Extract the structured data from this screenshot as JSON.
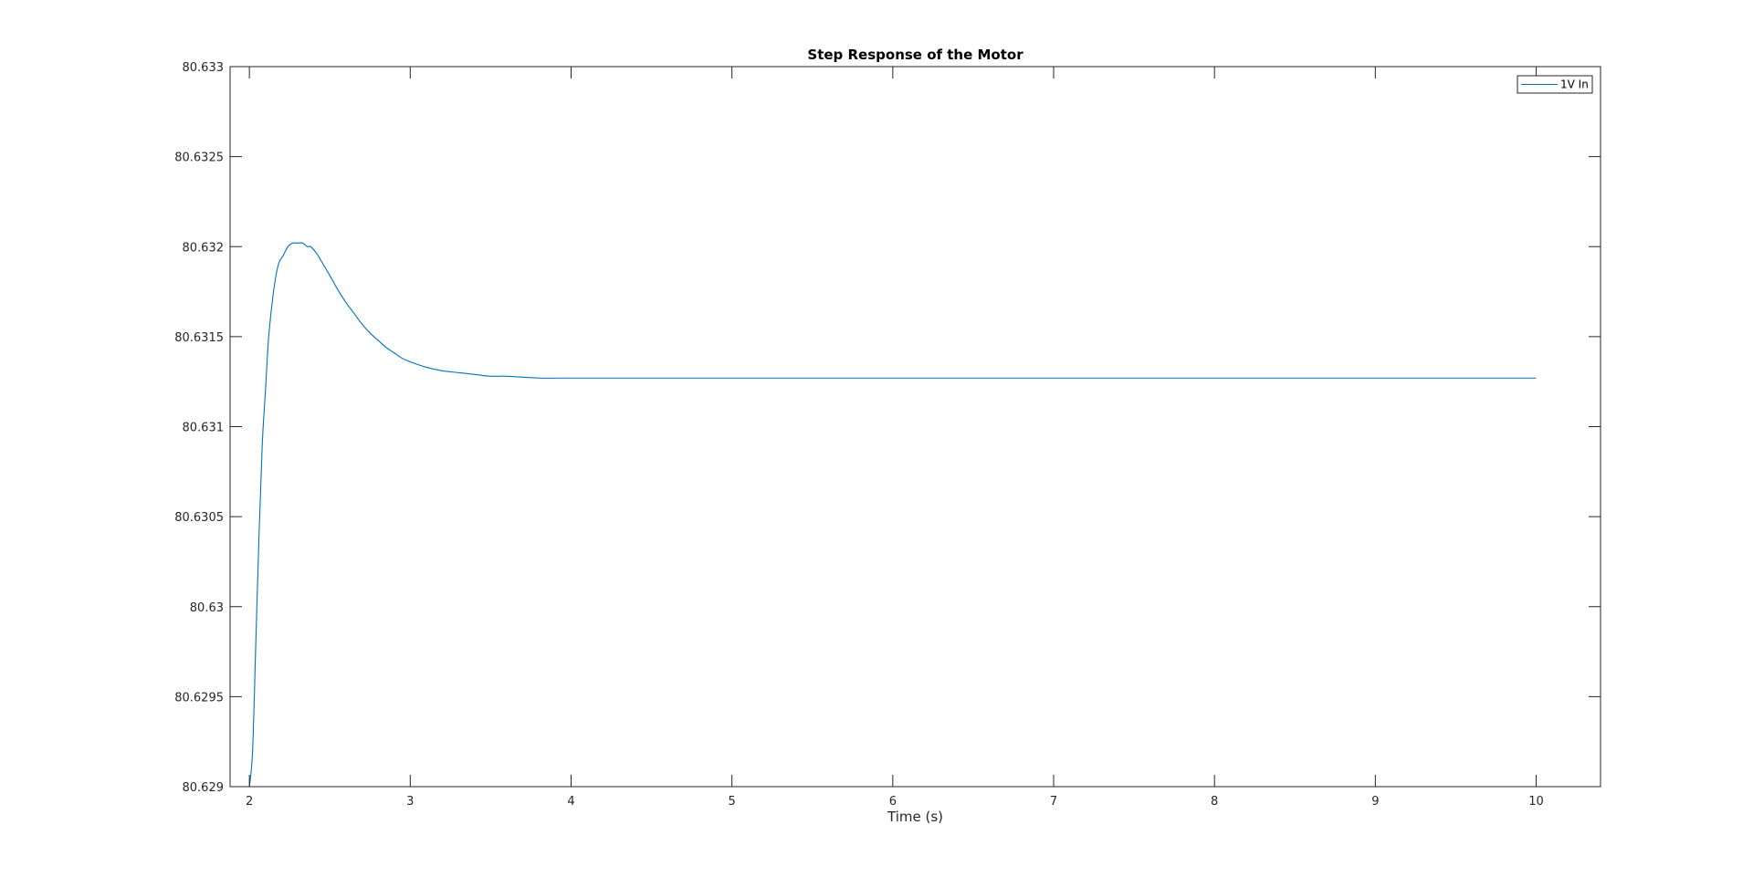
{
  "chart_data": {
    "type": "line",
    "title": "Step Response of the Motor",
    "xlabel": "Time (s)",
    "ylabel": "",
    "xlim": [
      1.88,
      10.4
    ],
    "ylim": [
      80.629,
      80.633
    ],
    "xticks": [
      2,
      3,
      4,
      5,
      6,
      7,
      8,
      9,
      10
    ],
    "xtick_labels": [
      "2",
      "3",
      "4",
      "5",
      "6",
      "7",
      "8",
      "9",
      "10"
    ],
    "yticks": [
      80.629,
      80.6295,
      80.63,
      80.6305,
      80.631,
      80.6315,
      80.632,
      80.6325,
      80.633
    ],
    "ytick_labels": [
      "80.629",
      "80.6295",
      "80.63",
      "80.6305",
      "80.631",
      "80.6315",
      "80.632",
      "80.6325",
      "80.633"
    ],
    "grid": false,
    "legend_position": "top-right",
    "line_color": "#0072BD",
    "series": [
      {
        "name": "1V In",
        "x": [
          2.0,
          2.02,
          2.04,
          2.06,
          2.08,
          2.1,
          2.12,
          2.15,
          2.18,
          2.21,
          2.24,
          2.27,
          2.3,
          2.33,
          2.36,
          2.38,
          2.42,
          2.46,
          2.5,
          2.55,
          2.6,
          2.65,
          2.7,
          2.75,
          2.8,
          2.85,
          2.9,
          2.95,
          3.0,
          3.1,
          3.2,
          3.3,
          3.4,
          3.5,
          3.6,
          3.8,
          4.0,
          5.0,
          6.0,
          7.0,
          8.0,
          9.0,
          10.0
        ],
        "y": [
          80.629,
          80.6292,
          80.6298,
          80.6304,
          80.6309,
          80.6312,
          80.6315,
          80.63175,
          80.6319,
          80.63195,
          80.632,
          80.63202,
          80.63202,
          80.63202,
          80.632,
          80.632,
          80.63196,
          80.6319,
          80.63184,
          80.63176,
          80.63169,
          80.63163,
          80.63157,
          80.63152,
          80.63148,
          80.63144,
          80.63141,
          80.63138,
          80.63136,
          80.63133,
          80.63131,
          80.6313,
          80.63129,
          80.63128,
          80.63128,
          80.63127,
          80.63127,
          80.63127,
          80.63127,
          80.63127,
          80.63127,
          80.63127,
          80.63127
        ]
      }
    ]
  }
}
